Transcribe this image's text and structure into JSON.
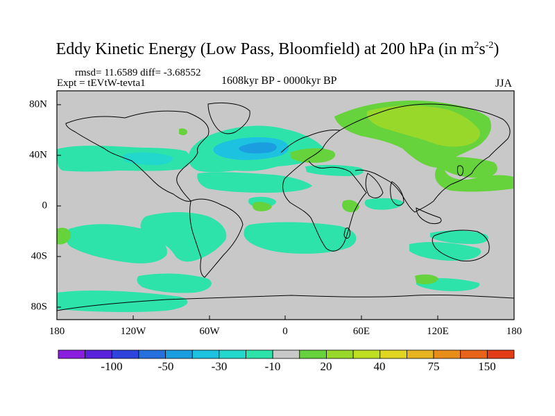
{
  "title": {
    "main": "Eddy Kinetic Energy (Low Pass, Bloomfield) at 200 hPa (in m",
    "sup1": "2",
    "mid": "s",
    "sup2": "-2",
    "end": ")"
  },
  "stats": {
    "rmsd_diff": "rmsd= 11.6589 diff= -3.68552",
    "expt": "Expt = tEVtW-tevta1",
    "period": "1608kyr BP - 0000kyr BP",
    "season": "JJA"
  },
  "axes": {
    "lon_labels": [
      "180",
      "120W",
      "60W",
      "0",
      "60E",
      "120E",
      "180"
    ],
    "lat_labels": [
      "80N",
      "40N",
      "0",
      "40S",
      "80S"
    ]
  },
  "colorbar": {
    "labels": [
      "-100",
      "-50",
      "-30",
      "-10",
      "20",
      "40",
      "75",
      "150"
    ],
    "colors": [
      "#8a1fe0",
      "#5a22dc",
      "#2f43dd",
      "#2670de",
      "#1b9ee0",
      "#1cc2e0",
      "#22d8cc",
      "#2de3aa",
      "#c8c8c8",
      "#66d23c",
      "#98d82a",
      "#bede22",
      "#e0d622",
      "#e6b41e",
      "#e88d1a",
      "#e8641a",
      "#e23d16"
    ]
  },
  "map": {
    "ocean_color": "#c8c8c8",
    "palette": {
      "neg10": "#2de3aa",
      "neg30": "#22d8cc",
      "neg50": "#1cc2e0",
      "neg100": "#1b9ee0",
      "pos20": "#66d23c",
      "pos40": "#98d82a"
    }
  }
}
